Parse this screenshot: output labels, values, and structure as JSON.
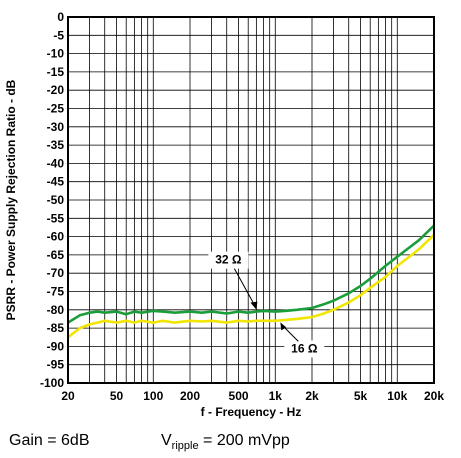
{
  "chart_data": {
    "type": "line",
    "xlabel": "f - Frequency - Hz",
    "ylabel": "PSRR - Power Supply Rejection Ratio - dB",
    "xscale": "log",
    "xlim": [
      20,
      20000
    ],
    "ylim": [
      -100,
      0
    ],
    "grid": true,
    "xticks": [
      {
        "value": 20,
        "label": "20"
      },
      {
        "value": 50,
        "label": "50"
      },
      {
        "value": 100,
        "label": "100"
      },
      {
        "value": 200,
        "label": "200"
      },
      {
        "value": 500,
        "label": "500"
      },
      {
        "value": 1000,
        "label": "1k"
      },
      {
        "value": 2000,
        "label": "2k"
      },
      {
        "value": 5000,
        "label": "5k"
      },
      {
        "value": 10000,
        "label": "10k"
      },
      {
        "value": 20000,
        "label": "20k"
      }
    ],
    "yticks": [
      0,
      -5,
      -10,
      -15,
      -20,
      -25,
      -30,
      -35,
      -40,
      -45,
      -50,
      -55,
      -60,
      -65,
      -70,
      -75,
      -80,
      -85,
      -90,
      -95,
      -100
    ],
    "series": [
      {
        "name": "32 Ω",
        "color": "#1a9e3a",
        "x": [
          20,
          25,
          30,
          35,
          40,
          50,
          60,
          70,
          80,
          100,
          120,
          150,
          200,
          250,
          300,
          400,
          500,
          600,
          700,
          800,
          1000,
          1200,
          1500,
          2000,
          2500,
          3000,
          4000,
          5000,
          6000,
          8000,
          10000,
          12000,
          15000,
          20000
        ],
        "y": [
          -83.5,
          -81.5,
          -80.8,
          -80.5,
          -80.8,
          -80.5,
          -81.2,
          -80.5,
          -80.8,
          -80.3,
          -80.5,
          -80.8,
          -80.5,
          -80.8,
          -80.5,
          -81,
          -80.5,
          -80.8,
          -80.5,
          -80.3,
          -80.5,
          -80.3,
          -80,
          -79.5,
          -78.5,
          -77.5,
          -75.5,
          -73.5,
          -71.5,
          -68,
          -65.5,
          -63.5,
          -61,
          -57
        ]
      },
      {
        "name": "16 Ω",
        "color": "#f2e600",
        "x": [
          20,
          25,
          30,
          35,
          40,
          50,
          60,
          70,
          80,
          100,
          120,
          150,
          200,
          250,
          300,
          400,
          500,
          600,
          700,
          800,
          1000,
          1200,
          1500,
          2000,
          2500,
          3000,
          4000,
          5000,
          6000,
          8000,
          10000,
          12000,
          15000,
          20000
        ],
        "y": [
          -87.5,
          -85,
          -84,
          -83.5,
          -83,
          -83.5,
          -83,
          -83.5,
          -83,
          -83.5,
          -83,
          -83.5,
          -83,
          -83.2,
          -83,
          -83.5,
          -83,
          -83.2,
          -83,
          -83,
          -83,
          -82.8,
          -82.5,
          -82,
          -81,
          -80,
          -78,
          -76,
          -74,
          -71,
          -68,
          -66,
          -63.5,
          -59.5
        ]
      }
    ],
    "annotations": [
      {
        "text": "32 Ω",
        "series": 0,
        "at_x": 700
      },
      {
        "text": "16 Ω",
        "series": 1,
        "at_x": 1100
      }
    ]
  },
  "caption": {
    "gain": "Gain = 6dB",
    "ripple_prefix": "V",
    "ripple_sub": "ripple",
    "ripple_value": " = 200 mVpp"
  }
}
